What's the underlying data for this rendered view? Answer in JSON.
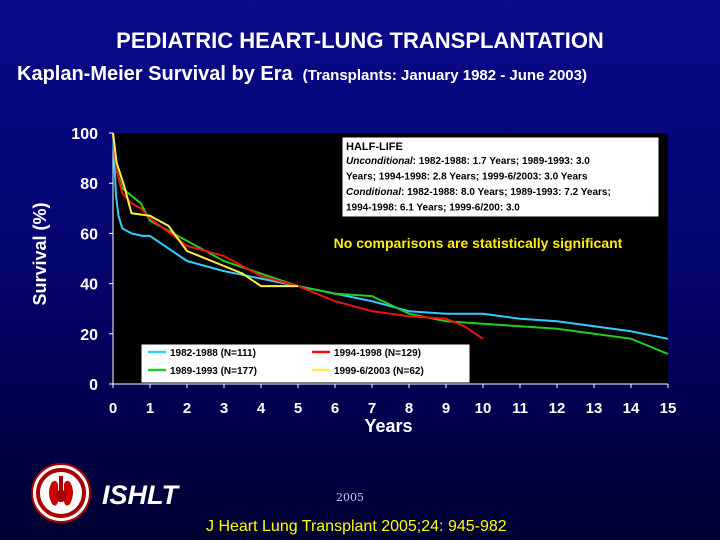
{
  "title_line1": "PEDIATRIC HEART-LUNG TRANSPLANTATION",
  "title_line2": "Kaplan-Meier Survival by Era",
  "title_line2_sub": "(Transplants: January 1982 - June 2003)",
  "footer": {
    "org": "ISHLT",
    "year": "2005",
    "citation": "J Heart Lung Transplant 2005;24: 945-982"
  },
  "colors": {
    "background": "#000066",
    "plot_bg": "#000000",
    "era1": "#33ccff",
    "era2": "#ee1111",
    "era3": "#22cc22",
    "era4": "#ffee44",
    "note": "#ffee00"
  },
  "chart_data": {
    "type": "line",
    "title": "Kaplan-Meier Survival by Era",
    "xlabel": "Years",
    "ylabel": "Survival (%)",
    "xlim": [
      0,
      15
    ],
    "ylim": [
      0,
      100
    ],
    "xticks": [
      0,
      1,
      2,
      3,
      4,
      5,
      6,
      7,
      8,
      9,
      10,
      11,
      12,
      13,
      14,
      15
    ],
    "yticks": [
      0,
      20,
      40,
      60,
      80,
      100
    ],
    "grid": false,
    "series": [
      {
        "name": "1982-1988 (N=111)",
        "color": "#33ccff",
        "x": [
          0,
          0.08,
          0.15,
          0.25,
          0.5,
          0.8,
          1,
          2,
          3,
          4,
          5,
          6,
          7,
          8,
          9,
          10,
          11,
          12,
          13,
          14,
          15
        ],
        "y": [
          100,
          75,
          67,
          62,
          60,
          59,
          59,
          49,
          45,
          42,
          39,
          36,
          33,
          29,
          28,
          28,
          26,
          25,
          23,
          21,
          18
        ]
      },
      {
        "name": "1989-1993 (N=177)",
        "color": "#22cc22",
        "x": [
          0,
          0.1,
          0.25,
          0.5,
          0.75,
          1,
          2,
          3,
          4,
          5,
          6,
          7,
          8,
          9,
          10,
          11,
          12,
          13,
          14,
          15
        ],
        "y": [
          100,
          85,
          78,
          75,
          72,
          65,
          57,
          49,
          44,
          39,
          36,
          35,
          28,
          25,
          24,
          23,
          22,
          20,
          18,
          12
        ]
      },
      {
        "name": "1994-1998 (N=129)",
        "color": "#ee1111",
        "x": [
          0,
          0.1,
          0.25,
          0.5,
          0.75,
          1,
          2,
          3,
          4,
          5,
          6,
          7,
          8,
          9,
          9.5,
          10
        ],
        "y": [
          100,
          85,
          76,
          72,
          70,
          66,
          55,
          51,
          43,
          39,
          33,
          29,
          27,
          26,
          23,
          18
        ]
      },
      {
        "name": "1999-6/2003 (N=62)",
        "color": "#ffee44",
        "x": [
          0,
          0.1,
          0.3,
          0.5,
          1,
          1.5,
          2,
          3,
          3.5,
          4,
          5
        ],
        "y": [
          100,
          88,
          79,
          68,
          67,
          63,
          53,
          47,
          44,
          39,
          39
        ]
      }
    ],
    "legend": {
      "placement": "bottom-left",
      "entries": [
        "1982-1988 (N=111)",
        "1989-1993 (N=177)",
        "1994-1998 (N=129)",
        "1999-6/2003 (N=62)"
      ]
    },
    "annotations": {
      "half_life_heading": "HALF-LIFE",
      "half_life_lines": [
        [
          "Unconditional",
          ": 1982-1988: 1.7 Years; 1989-1993: 3.0"
        ],
        [
          "",
          "Years; 1994-1998: 2.8 Years; 1999-6/2003: 3.0 Years"
        ],
        [
          "Conditional",
          ": 1982-1988: 8.0 Years; 1989-1993: 7.2 Years;"
        ],
        [
          "",
          "1994-1998: 6.1 Years; 1999-6/200: 3.0"
        ]
      ],
      "significance_note": "No comparisons are statistically significant"
    }
  }
}
